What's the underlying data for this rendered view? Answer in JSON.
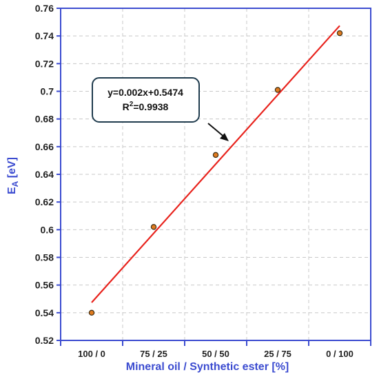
{
  "chart_data": {
    "type": "scatter",
    "categories": [
      "100 / 0",
      "75 / 25",
      "50 / 50",
      "25 / 75",
      "0 / 100"
    ],
    "x": [
      0,
      25,
      50,
      75,
      100
    ],
    "values": [
      0.54,
      0.602,
      0.654,
      0.701,
      0.742
    ],
    "xlabel": "Mineral oil / Synthetic ester [%]",
    "ylabel_main": "E",
    "ylabel_sub": "A",
    "ylabel_unit": " [eV]",
    "ylim": [
      0.52,
      0.76
    ],
    "yticks": [
      "0.52",
      "0.54",
      "0.56",
      "0.58",
      "0.6",
      "0.62",
      "0.64",
      "0.66",
      "0.68",
      "0.7",
      "0.72",
      "0.74",
      "0.76"
    ],
    "grid": true,
    "fit": {
      "slope": 0.002,
      "intercept": 0.5474,
      "equation": "y=0.002x+0.5474",
      "r2_label": "R",
      "r2_sup": "2",
      "r2_value": "=0.9938"
    },
    "colors": {
      "marker_fill": "#e07b1f",
      "marker_stroke": "#3a2a10",
      "fit_line": "#e8221c",
      "axis": "#3b4bd0",
      "grid": "#c8c8c8",
      "axis_label": "#3b4bd0",
      "box_stroke": "#1f3b4d"
    }
  }
}
